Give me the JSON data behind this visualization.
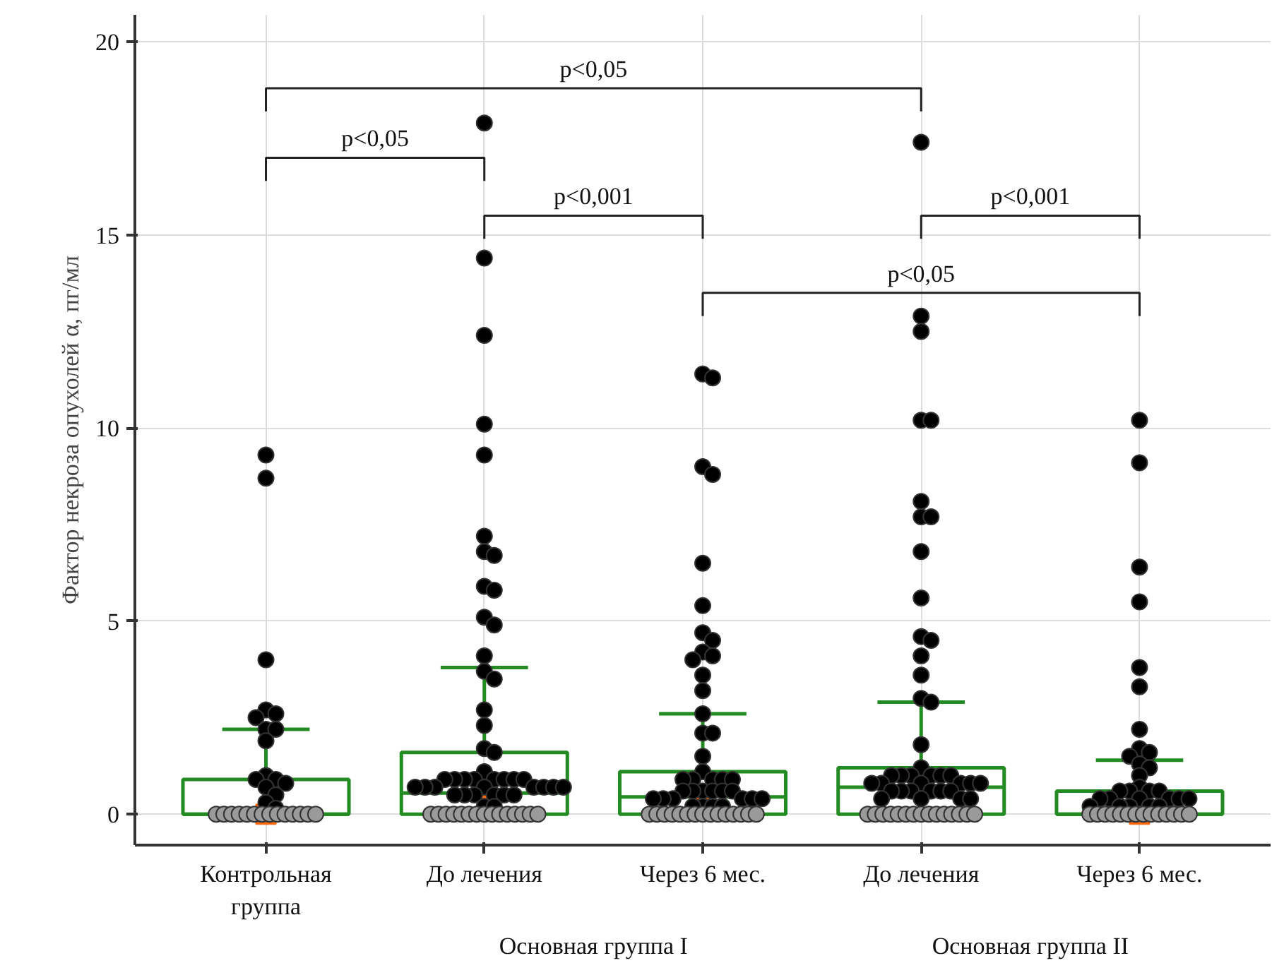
{
  "chart_data": {
    "type": "box",
    "ylabel": "Фактор некроза опухолей α, пг/мл",
    "categories": [
      "Контрольная группа",
      "До лечения",
      "Через 6 мес.",
      "До лечения",
      "Через 6 мес."
    ],
    "ylim": [
      -0.8,
      20.7
    ],
    "yticks": [
      0,
      5,
      10,
      15,
      20
    ],
    "grid": true,
    "marker": "circle",
    "color": "#228b22",
    "boxes": [
      {
        "low": 0,
        "q1": 0,
        "median": 0,
        "q3": 0.9,
        "high": 2.2,
        "mean": 0,
        "outliers": [
          9.3,
          8.7,
          4.0,
          2.7,
          2.6,
          2.5,
          2.2,
          2.2,
          1.9,
          1.0,
          0.9,
          0.9,
          0.8,
          0.7,
          0.5,
          0.3,
          0.15,
          0,
          0,
          0,
          0,
          0,
          0,
          0,
          0,
          0,
          0,
          0,
          0,
          0,
          0
        ]
      },
      {
        "low": 0,
        "q1": 0,
        "median": 0.55,
        "q3": 1.6,
        "high": 3.8,
        "mean": 0.6,
        "outliers": [
          17.9,
          14.4,
          12.4,
          10.1,
          9.3,
          7.2,
          6.8,
          6.7,
          5.9,
          5.8,
          5.1,
          4.9,
          4.1,
          3.7,
          3.5,
          2.7,
          2.3,
          1.7,
          1.6,
          1.1,
          0.9,
          0.9,
          0.9,
          0.9,
          0.9,
          0.9,
          0.9,
          0.9,
          0.7,
          0.7,
          0.7,
          0.7,
          0.7,
          0.7,
          0.7,
          0.7,
          0.5,
          0.5,
          0.5,
          0.5,
          0.5,
          0.5,
          0.2,
          0.2,
          0,
          0,
          0,
          0,
          0,
          0,
          0,
          0,
          0,
          0,
          0,
          0,
          0,
          0,
          0
        ]
      },
      {
        "low": 0,
        "q1": 0,
        "median": 0.45,
        "q3": 1.1,
        "high": 2.6,
        "mean": 0.45,
        "outliers": [
          11.4,
          11.3,
          9.0,
          8.8,
          6.5,
          5.4,
          4.7,
          4.5,
          4.2,
          4.1,
          4.0,
          3.6,
          3.2,
          2.6,
          2.1,
          2.1,
          1.5,
          1.1,
          0.9,
          0.9,
          0.9,
          0.9,
          0.9,
          0.6,
          0.6,
          0.6,
          0.6,
          0.6,
          0.6,
          0.4,
          0.4,
          0.4,
          0.4,
          0.4,
          0.4,
          0.2,
          0.2,
          0.2,
          0.2,
          0,
          0,
          0,
          0,
          0,
          0,
          0,
          0,
          0,
          0,
          0,
          0,
          0,
          0,
          0
        ]
      },
      {
        "low": 0,
        "q1": 0,
        "median": 0.7,
        "q3": 1.2,
        "high": 2.9,
        "mean": 0.72,
        "outliers": [
          17.4,
          12.9,
          12.5,
          10.2,
          10.2,
          8.1,
          7.7,
          7.7,
          6.8,
          5.6,
          4.6,
          4.5,
          4.1,
          3.6,
          3.0,
          2.9,
          1.8,
          1.2,
          1.0,
          1.0,
          1.0,
          1.0,
          1.0,
          1.0,
          0.8,
          0.8,
          0.8,
          0.8,
          0.8,
          0.8,
          0.6,
          0.6,
          0.6,
          0.6,
          0.6,
          0.6,
          0.4,
          0.4,
          0.4,
          0.4,
          0,
          0,
          0,
          0,
          0,
          0,
          0,
          0,
          0,
          0,
          0,
          0,
          0,
          0,
          0
        ]
      },
      {
        "low": 0,
        "q1": 0,
        "median": 0,
        "q3": 0.6,
        "high": 1.4,
        "mean": 0,
        "outliers": [
          10.2,
          9.1,
          6.4,
          5.5,
          3.8,
          3.3,
          2.2,
          1.7,
          1.6,
          1.5,
          1.3,
          1.2,
          1.0,
          0.7,
          0.6,
          0.6,
          0.6,
          0.6,
          0.4,
          0.4,
          0.4,
          0.4,
          0.4,
          0.4,
          0.2,
          0.2,
          0.2,
          0.2,
          0.2,
          0,
          0,
          0,
          0,
          0,
          0,
          0,
          0,
          0,
          0,
          0,
          0,
          0,
          0
        ]
      }
    ],
    "annotations": [
      "p<0,05",
      "p<0,05",
      "p<0,001",
      "p<0,001",
      "p<0,05",
      "Основная группа I",
      "Основная группа II"
    ]
  }
}
